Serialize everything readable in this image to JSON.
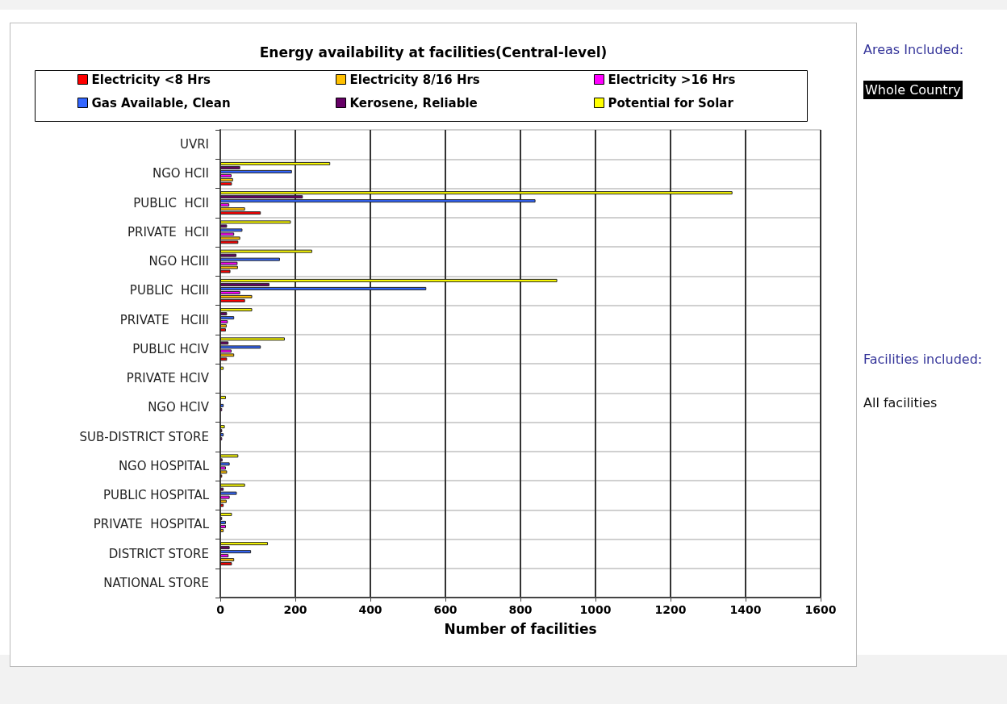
{
  "chart_data": {
    "type": "bar",
    "orientation": "horizontal",
    "title": "Energy availability at facilities(Central-level)",
    "xlabel": "Number of facilities",
    "categories": [
      "UVRI",
      "NGO HCII",
      "PUBLIC  HCII",
      "PRIVATE  HCII",
      "NGO HCIII",
      "PUBLIC  HCIII",
      "PRIVATE   HCIII",
      "PUBLIC HCIV",
      "PRIVATE HCIV",
      "NGO HCIV",
      "SUB-DISTRICT STORE",
      "NGO HOSPITAL",
      "PUBLIC HOSPITAL",
      "PRIVATE  HOSPITAL",
      "DISTRICT STORE",
      "NATIONAL STORE"
    ],
    "series": [
      {
        "name": "Electricity <8 Hrs",
        "color": "#ff0000",
        "values": [
          null,
          31,
          108,
          48,
          27,
          66,
          15,
          18,
          null,
          null,
          null,
          5,
          9,
          null,
          31,
          null
        ]
      },
      {
        "name": "Electricity 8/16 Hrs",
        "color": "#ffc000",
        "values": [
          null,
          34,
          66,
          53,
          47,
          85,
          17,
          37,
          null,
          null,
          null,
          18,
          17,
          9,
          37,
          null
        ]
      },
      {
        "name": "Electricity >16 Hrs",
        "color": "#ff00ff",
        "values": [
          null,
          30,
          24,
          37,
          46,
          53,
          20,
          30,
          null,
          5,
          5,
          15,
          25,
          15,
          22,
          null
        ]
      },
      {
        "name": "Gas Available, Clean",
        "color": "#3366ff",
        "values": [
          null,
          191,
          840,
          59,
          159,
          549,
          37,
          108,
          null,
          9,
          9,
          25,
          44,
          15,
          82,
          null
        ]
      },
      {
        "name": "Kerosene, Reliable",
        "color": "#660066",
        "values": [
          null,
          53,
          220,
          18,
          43,
          131,
          18,
          22,
          null,
          null,
          5,
          6,
          9,
          5,
          25,
          null
        ]
      },
      {
        "name": "Potential for Solar",
        "color": "#ffff00",
        "values": [
          null,
          293,
          1365,
          188,
          245,
          898,
          85,
          172,
          9,
          15,
          12,
          48,
          66,
          31,
          127,
          null
        ]
      }
    ],
    "xlim": [
      0,
      1600
    ],
    "xticks": [
      0,
      200,
      400,
      600,
      800,
      1000,
      1200,
      1400,
      1600
    ],
    "grid": true,
    "legend": "top",
    "annotations": [
      "Areas Included:",
      "Whole Country",
      "Facilities included:",
      "All facilities"
    ]
  }
}
